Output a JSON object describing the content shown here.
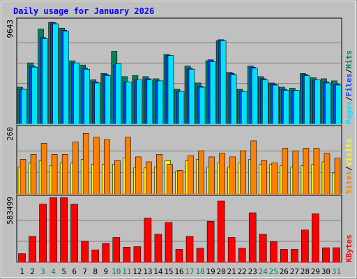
{
  "chart_data": {
    "type": "bar",
    "title": "Daily usage for January 2026",
    "days": [
      "1",
      "2",
      "3",
      "4",
      "5",
      "6",
      "7",
      "8",
      "9",
      "10",
      "11",
      "12",
      "13",
      "14",
      "15",
      "16",
      "17",
      "18",
      "19",
      "20",
      "21",
      "22",
      "23",
      "24",
      "25",
      "26",
      "27",
      "28",
      "29",
      "30",
      "31"
    ],
    "weekend_days": [
      "3",
      "4",
      "10",
      "11",
      "17",
      "18",
      "24",
      "25",
      "31"
    ],
    "panels": [
      {
        "name": "hits-files-pages",
        "ylabel_parts": [
          "Pages",
          "Files",
          "Hits"
        ],
        "max_label": "9643",
        "max": 9643,
        "series": [
          {
            "name": "Hits",
            "color": "#00805C",
            "values": [
              3500,
              5800,
              9000,
              9643,
              9100,
              6000,
              5600,
              4200,
              4800,
              6900,
              4500,
              4600,
              4500,
              4300,
              6600,
              3300,
              5500,
              3900,
              6000,
              7900,
              4900,
              3300,
              5500,
              4500,
              3900,
              3500,
              3400,
              4800,
              4400,
              4300,
              4100
            ]
          },
          {
            "name": "Files",
            "color": "#0044FF",
            "values": [
              3300,
              5500,
              8200,
              9600,
              8900,
              5800,
              5300,
              4000,
              4700,
              5600,
              4000,
              4200,
              4300,
              4100,
              6500,
              3100,
              5300,
              3600,
              6100,
              8000,
              4800,
              3100,
              5400,
              4300,
              3800,
              3300,
              3200,
              4700,
              4200,
              4000,
              3800
            ]
          },
          {
            "name": "Pages",
            "color": "#00E2FF",
            "values": [
              3300,
              5400,
              8100,
              9500,
              8800,
              5800,
              5200,
              3900,
              4600,
              5700,
              4000,
              4200,
              4200,
              4100,
              6500,
              3100,
              5200,
              3500,
              5900,
              7900,
              4700,
              3100,
              5300,
              4200,
              3700,
              3200,
              3200,
              4600,
              4200,
              3900,
              3700
            ]
          }
        ]
      },
      {
        "name": "visits-sites",
        "ylabel_parts": [
          "Sites",
          "Visits"
        ],
        "max_label": "260",
        "max": 260,
        "series": [
          {
            "name": "Visits",
            "color": "#FFFF00",
            "values": [
              110,
              125,
              135,
              115,
              125,
              125,
              140,
              120,
              120,
              120,
              145,
              105,
              105,
              110,
              135,
              90,
              135,
              140,
              110,
              125,
              110,
              125,
              140,
              120,
              120,
              115,
              110,
              115,
              120,
              130,
              85
            ]
          },
          {
            "name": "Sites",
            "color": "#FF8000",
            "values": [
              140,
              160,
              205,
              160,
              160,
              210,
              245,
              230,
              220,
              135,
              230,
              150,
              130,
              160,
              120,
              95,
              155,
              175,
              150,
              165,
              150,
              175,
              215,
              135,
              125,
              185,
              175,
              185,
              185,
              165,
              145
            ]
          }
        ]
      },
      {
        "name": "kbytes",
        "ylabel_parts": [
          "KBytes"
        ],
        "max_label": "583499",
        "max": 583499,
        "series": [
          {
            "name": "KBytes",
            "color": "#FF0000",
            "values": [
              80000,
              240000,
              540000,
              600000,
              600000,
              540000,
              195000,
              115000,
              175000,
              230000,
              140000,
              145000,
              410000,
              260000,
              370000,
              120000,
              240000,
              130000,
              380000,
              570000,
              230000,
              130000,
              460000,
              260000,
              190000,
              120000,
              120000,
              300000,
              450000,
              135000,
              135000
            ]
          }
        ]
      }
    ],
    "colors": {
      "background": "#C0C0C0",
      "plot_background": "#C0C0C0",
      "title_color": "#0000FF",
      "panel_separator_1": "#00E2FF",
      "panel_separator_2": "#FF8000",
      "panel_separator_3": "#FF0000",
      "weekend_label": "#00805C",
      "weekday_label": "#000000"
    }
  }
}
